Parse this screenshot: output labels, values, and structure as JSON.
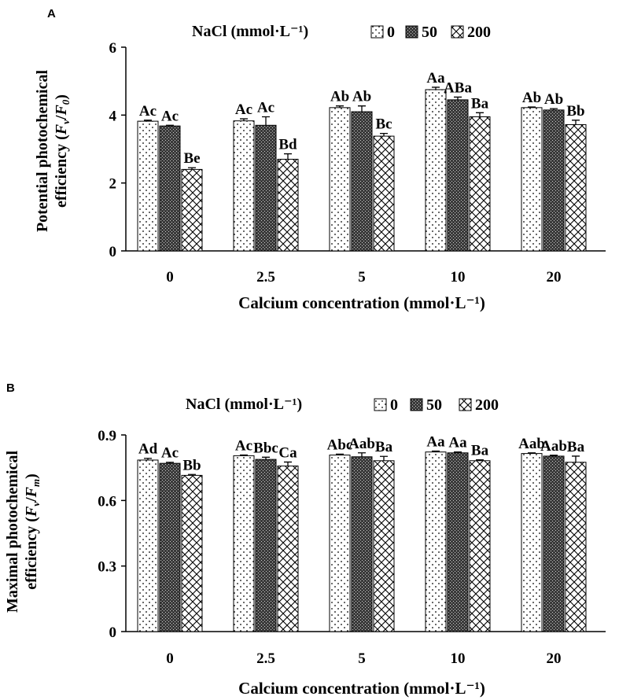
{
  "chart_data": [
    {
      "panel": "A",
      "type": "bar",
      "legend_title": "NaCl (mmol·L⁻¹)",
      "legend_placement": "top",
      "xlabel": "Calcium concentration (mmol·L⁻¹)",
      "ylabel_line1": "Potential photochemical",
      "ylabel_line2_prefix": "efficiency (",
      "ylabel_var_a": "F",
      "ylabel_sub_a": "v",
      "ylabel_slash": "/",
      "ylabel_var_b": "F",
      "ylabel_sub_b": "0",
      "ylabel_close": ")",
      "ylim": [
        0,
        6
      ],
      "yticks": [
        "0",
        "2",
        "4",
        "6"
      ],
      "ytick_values": [
        0,
        2,
        4,
        6
      ],
      "categories": [
        "0",
        "2.5",
        "5",
        "10",
        "20"
      ],
      "series": [
        {
          "name": "0",
          "pattern": "dots",
          "values": [
            3.82,
            3.83,
            4.22,
            4.75,
            4.22
          ],
          "errors": [
            0.03,
            0.06,
            0.05,
            0.07,
            0.02
          ],
          "labels": [
            "Ac",
            "Ac",
            "Ab",
            "Aa",
            "Ab"
          ]
        },
        {
          "name": "50",
          "pattern": "dense",
          "values": [
            3.68,
            3.7,
            4.1,
            4.45,
            4.15
          ],
          "errors": [
            0.02,
            0.25,
            0.17,
            0.08,
            0.04
          ],
          "labels": [
            "Ac",
            "Ac",
            "Ab",
            "ABa",
            "Ab"
          ]
        },
        {
          "name": "200",
          "pattern": "cross",
          "values": [
            2.4,
            2.7,
            3.38,
            3.95,
            3.72
          ],
          "errors": [
            0.05,
            0.16,
            0.08,
            0.12,
            0.13
          ],
          "labels": [
            "Be",
            "Bd",
            "Bc",
            "Ba",
            "Bb"
          ]
        }
      ]
    },
    {
      "panel": "B",
      "type": "bar",
      "legend_title": "NaCl (mmol·L⁻¹)",
      "legend_placement": "top",
      "xlabel": "Calcium concentration (mmol·L⁻¹)",
      "ylabel_line1": "Maximal photochemical",
      "ylabel_line2_prefix": "efficiency (",
      "ylabel_var_a": "F",
      "ylabel_sub_a": "v",
      "ylabel_slash": "/",
      "ylabel_var_b": "F",
      "ylabel_sub_b": "m",
      "ylabel_close": ")",
      "ylim": [
        0,
        0.9
      ],
      "yticks": [
        "0",
        "0.3",
        "0.6",
        "0.9"
      ],
      "ytick_values": [
        0,
        0.3,
        0.6,
        0.9
      ],
      "categories": [
        "0",
        "2.5",
        "5",
        "10",
        "20"
      ],
      "series": [
        {
          "name": "0",
          "pattern": "dots",
          "values": [
            0.785,
            0.805,
            0.808,
            0.822,
            0.815
          ],
          "errors": [
            0.008,
            0.003,
            0.004,
            0.004,
            0.003
          ],
          "labels": [
            "Ad",
            "Ac",
            "Abc",
            "Aa",
            "Aab"
          ]
        },
        {
          "name": "50",
          "pattern": "dense",
          "values": [
            0.77,
            0.788,
            0.8,
            0.818,
            0.803
          ],
          "errors": [
            0.005,
            0.01,
            0.018,
            0.004,
            0.004
          ],
          "labels": [
            "Ac",
            "Bbc",
            "Aab",
            "Aa",
            "Aab"
          ]
        },
        {
          "name": "200",
          "pattern": "cross",
          "values": [
            0.715,
            0.758,
            0.782,
            0.782,
            0.775
          ],
          "errors": [
            0.004,
            0.018,
            0.02,
            0.004,
            0.028
          ],
          "labels": [
            "Bb",
            "Ca",
            "Ba",
            "Ba",
            "Ba"
          ]
        }
      ]
    }
  ]
}
